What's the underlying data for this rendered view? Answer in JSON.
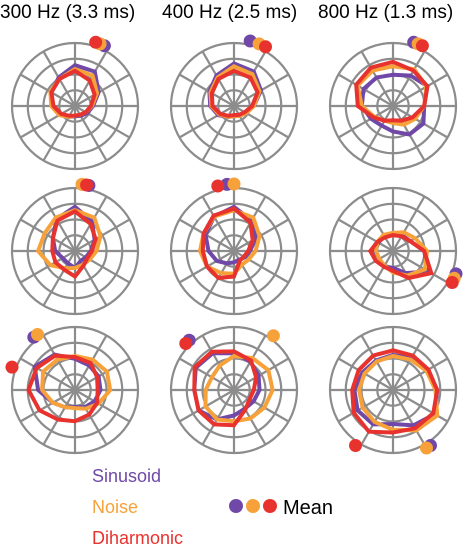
{
  "colors": {
    "sinusoid": "#7048a8",
    "noise": "#f7a13a",
    "diharmonic": "#e8322e",
    "grid": "#8c8c8c"
  },
  "chart_data": {
    "type": "polar",
    "rings": 4,
    "spokes": 12,
    "columns": [
      "300 Hz (3.3 ms)",
      "400 Hz (2.5 ms)",
      "800 Hz (1.3 ms)"
    ],
    "series": [
      {
        "name": "Sinusoid",
        "key": "sinusoid"
      },
      {
        "name": "Noise",
        "key": "noise"
      },
      {
        "name": "Diharmonic",
        "key": "diharmonic"
      }
    ],
    "mean_label": "Mean",
    "panels": [
      {
        "row": 0,
        "col": 0,
        "profiles": {
          "sinusoid": [
            0.72,
            0.7,
            0.48,
            0.32,
            0.25,
            0.2,
            0.18,
            0.22,
            0.3,
            0.4,
            0.48,
            0.58
          ],
          "noise": [
            0.65,
            0.62,
            0.45,
            0.3,
            0.22,
            0.18,
            0.17,
            0.22,
            0.32,
            0.42,
            0.5,
            0.55
          ],
          "diharmonic": [
            0.62,
            0.52,
            0.4,
            0.28,
            0.22,
            0.18,
            0.17,
            0.2,
            0.28,
            0.38,
            0.48,
            0.55
          ]
        },
        "means": {
          "sinusoid": 26,
          "noise": 22,
          "diharmonic": 18
        }
      },
      {
        "row": 0,
        "col": 1,
        "profiles": {
          "sinusoid": [
            0.75,
            0.7,
            0.55,
            0.35,
            0.25,
            0.2,
            0.18,
            0.22,
            0.32,
            0.42,
            0.5,
            0.62
          ],
          "noise": [
            0.7,
            0.65,
            0.52,
            0.35,
            0.25,
            0.2,
            0.18,
            0.22,
            0.3,
            0.4,
            0.48,
            0.58
          ],
          "diharmonic": [
            0.62,
            0.58,
            0.48,
            0.32,
            0.22,
            0.18,
            0.16,
            0.2,
            0.28,
            0.38,
            0.45,
            0.55
          ]
        },
        "means": {
          "sinusoid": 14,
          "noise": 22,
          "diharmonic": 28
        }
      },
      {
        "row": 0,
        "col": 2,
        "profiles": {
          "sinusoid": [
            0.55,
            0.62,
            0.7,
            0.55,
            0.62,
            0.58,
            0.45,
            0.4,
            0.45,
            0.55,
            0.6,
            0.58
          ],
          "noise": [
            0.7,
            0.75,
            0.68,
            0.55,
            0.45,
            0.38,
            0.3,
            0.3,
            0.38,
            0.55,
            0.72,
            0.72
          ],
          "diharmonic": [
            0.78,
            0.72,
            0.7,
            0.55,
            0.4,
            0.3,
            0.25,
            0.3,
            0.4,
            0.62,
            0.75,
            0.78
          ]
        },
        "means": {
          "sinusoid": 18,
          "noise": 22,
          "diharmonic": 26
        }
      },
      {
        "row": 1,
        "col": 0,
        "profiles": {
          "sinusoid": [
            0.78,
            0.6,
            0.4,
            0.28,
            0.22,
            0.2,
            0.3,
            0.25,
            0.25,
            0.35,
            0.45,
            0.65
          ],
          "noise": [
            0.72,
            0.68,
            0.52,
            0.38,
            0.3,
            0.28,
            0.3,
            0.35,
            0.5,
            0.65,
            0.62,
            0.68
          ],
          "diharmonic": [
            0.7,
            0.55,
            0.42,
            0.3,
            0.25,
            0.3,
            0.45,
            0.38,
            0.4,
            0.4,
            0.45,
            0.62
          ]
        },
        "means": {
          "sinusoid": 12,
          "noise": 6,
          "diharmonic": 10
        }
      },
      {
        "row": 1,
        "col": 1,
        "profiles": {
          "sinusoid": [
            0.78,
            0.62,
            0.45,
            0.28,
            0.22,
            0.18,
            0.2,
            0.25,
            0.35,
            0.45,
            0.58,
            0.7
          ],
          "noise": [
            0.72,
            0.68,
            0.52,
            0.38,
            0.3,
            0.28,
            0.4,
            0.45,
            0.55,
            0.6,
            0.62,
            0.7
          ],
          "diharmonic": [
            0.75,
            0.58,
            0.38,
            0.25,
            0.2,
            0.2,
            0.45,
            0.55,
            0.55,
            0.55,
            0.62,
            0.72
          ]
        },
        "means": {
          "sinusoid": 354,
          "noise": 0,
          "diharmonic": 346
        }
      },
      {
        "row": 1,
        "col": 2,
        "profiles": {
          "sinusoid": [
            0.3,
            0.32,
            0.35,
            0.55,
            0.72,
            0.45,
            0.3,
            0.32,
            0.28,
            0.32,
            0.3,
            0.3
          ],
          "noise": [
            0.32,
            0.38,
            0.45,
            0.6,
            0.65,
            0.5,
            0.38,
            0.3,
            0.28,
            0.3,
            0.32,
            0.33
          ],
          "diharmonic": [
            0.28,
            0.3,
            0.35,
            0.55,
            0.78,
            0.55,
            0.35,
            0.32,
            0.35,
            0.4,
            0.32,
            0.28
          ]
        },
        "means": {
          "sinusoid": 110,
          "noise": 114,
          "diharmonic": 118
        }
      },
      {
        "row": 2,
        "col": 0,
        "profiles": {
          "sinusoid": [
            0.55,
            0.5,
            0.48,
            0.45,
            0.4,
            0.35,
            0.3,
            0.35,
            0.45,
            0.65,
            0.82,
            0.72
          ],
          "noise": [
            0.6,
            0.62,
            0.65,
            0.62,
            0.48,
            0.38,
            0.32,
            0.35,
            0.45,
            0.58,
            0.65,
            0.62
          ],
          "diharmonic": [
            0.58,
            0.55,
            0.45,
            0.4,
            0.45,
            0.5,
            0.55,
            0.6,
            0.72,
            0.82,
            0.78,
            0.7
          ]
        },
        "means": {
          "sinusoid": 322,
          "noise": 326,
          "diharmonic": 290
        }
      },
      {
        "row": 2,
        "col": 1,
        "profiles": {
          "sinusoid": [
            0.65,
            0.58,
            0.5,
            0.45,
            0.4,
            0.38,
            0.45,
            0.6,
            0.72,
            0.7,
            0.78,
            0.75
          ],
          "noise": [
            0.6,
            0.65,
            0.7,
            0.68,
            0.62,
            0.58,
            0.55,
            0.6,
            0.58,
            0.5,
            0.45,
            0.5
          ],
          "diharmonic": [
            0.68,
            0.6,
            0.45,
            0.35,
            0.32,
            0.4,
            0.62,
            0.7,
            0.72,
            0.7,
            0.8,
            0.78
          ]
        },
        "means": {
          "sinusoid": 318,
          "noise": 36,
          "diharmonic": 314
        }
      },
      {
        "row": 2,
        "col": 2,
        "profiles": {
          "sinusoid": [
            0.62,
            0.65,
            0.7,
            0.78,
            0.85,
            0.72,
            0.6,
            0.7,
            0.72,
            0.68,
            0.62,
            0.6
          ],
          "noise": [
            0.6,
            0.62,
            0.68,
            0.75,
            0.9,
            0.82,
            0.7,
            0.65,
            0.62,
            0.6,
            0.58,
            0.58
          ],
          "diharmonic": [
            0.7,
            0.7,
            0.72,
            0.78,
            0.82,
            0.78,
            0.75,
            0.85,
            0.8,
            0.72,
            0.7,
            0.7
          ]
        },
        "means": {
          "sinusoid": 146,
          "noise": 150,
          "diharmonic": 214
        }
      }
    ]
  },
  "legend": {
    "items": [
      {
        "label": "Sinusoid",
        "key": "sinusoid"
      },
      {
        "label": "Noise",
        "key": "noise"
      },
      {
        "label": "Diharmonic",
        "key": "diharmonic"
      }
    ],
    "mean_label": "Mean"
  }
}
